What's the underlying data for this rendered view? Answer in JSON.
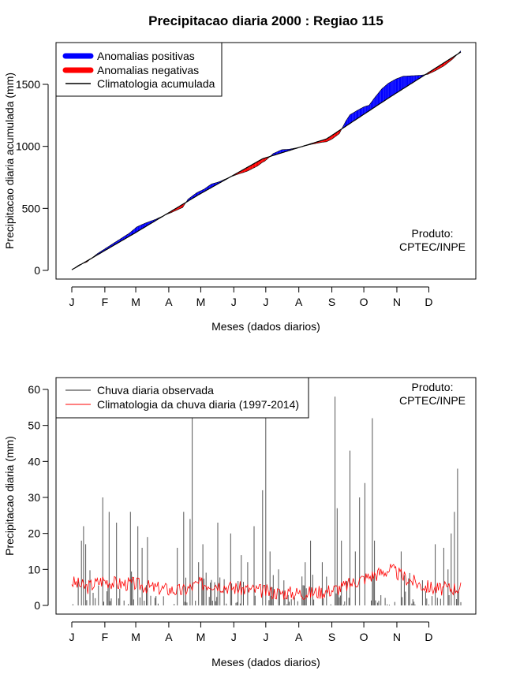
{
  "title": "Precipitacao diaria 2000 : Regiao 115",
  "product_label": [
    "Produto:",
    "CPTEC/INPE"
  ],
  "colors": {
    "positive": "#0000ff",
    "negative": "#ff0000",
    "climatology": "#000000",
    "observed_bar": "#555555",
    "climatology_daily": "#ff0000"
  },
  "chart_data": [
    {
      "type": "area",
      "name": "accumulated",
      "xlabel": "Meses (dados diarios)",
      "ylabel": "Precipitacao diaria acumulada (mm)",
      "xlim": [
        1,
        366
      ],
      "ylim": [
        0,
        1800
      ],
      "yticks": [
        0,
        500,
        1000,
        1500
      ],
      "months": [
        "J",
        "F",
        "M",
        "A",
        "M",
        "J",
        "J",
        "A",
        "S",
        "O",
        "N",
        "D"
      ],
      "month_start_days": [
        1,
        32,
        61,
        92,
        122,
        153,
        183,
        214,
        245,
        275,
        306,
        336
      ],
      "legend": [
        "Anomalias positivas",
        "Anomalias negativas",
        "Climatologia acumulada"
      ],
      "climatology_anchor": {
        "day": [
          1,
          60,
          120,
          180,
          240,
          300,
          366
        ],
        "value": [
          5,
          300,
          610,
          900,
          1060,
          1400,
          1760
        ]
      },
      "anomaly_anchor": {
        "day": [
          1,
          8,
          15,
          25,
          35,
          45,
          55,
          62,
          70,
          80,
          88,
          95,
          105,
          110,
          118,
          125,
          132,
          140,
          150,
          158,
          165,
          175,
          182,
          190,
          198,
          205,
          215,
          225,
          235,
          245,
          252,
          258,
          262,
          270,
          275,
          280,
          285,
          292,
          298,
          305,
          312,
          320,
          328,
          335,
          342,
          350,
          358,
          366
        ],
        "value": [
          0,
          5,
          -8,
          10,
          15,
          20,
          25,
          40,
          30,
          10,
          0,
          -12,
          -25,
          15,
          25,
          20,
          28,
          10,
          0,
          -15,
          -30,
          -35,
          -25,
          15,
          25,
          10,
          0,
          -5,
          -15,
          -30,
          -25,
          40,
          70,
          65,
          60,
          45,
          75,
          110,
          120,
          115,
          100,
          60,
          20,
          -10,
          -20,
          -25,
          -15,
          10
        ]
      }
    },
    {
      "type": "bar",
      "name": "daily",
      "xlabel": "Meses (dados diarios)",
      "ylabel": "Precipitacao diaria (mm)",
      "xlim": [
        1,
        366
      ],
      "ylim": [
        0,
        60
      ],
      "yticks": [
        0,
        10,
        20,
        30,
        40,
        50,
        60
      ],
      "months": [
        "J",
        "F",
        "M",
        "A",
        "M",
        "J",
        "J",
        "A",
        "S",
        "O",
        "N",
        "D"
      ],
      "month_start_days": [
        1,
        32,
        61,
        92,
        122,
        153,
        183,
        214,
        245,
        275,
        306,
        336
      ],
      "legend": [
        "Chuva diaria observada",
        "Climatologia da chuva diaria (1997-2014)"
      ],
      "observed_peaks": {
        "day": [
          10,
          12,
          14,
          30,
          36,
          43,
          56,
          63,
          67,
          72,
          100,
          106,
          112,
          114,
          120,
          124,
          138,
          150,
          160,
          166,
          172,
          180,
          183,
          187,
          195,
          220,
          225,
          236,
          240,
          248,
          250,
          254,
          262,
          267,
          271,
          276,
          283,
          285,
          310,
          318,
          342,
          350,
          354,
          357,
          360,
          363
        ],
        "value": [
          18,
          22,
          17,
          30,
          26,
          23,
          26,
          22,
          16,
          19,
          16,
          26,
          24,
          53,
          12,
          17,
          23,
          20,
          14,
          12,
          22,
          32,
          53,
          15,
          10,
          12,
          18,
          12,
          8,
          58,
          27,
          18,
          43,
          15,
          30,
          34,
          52,
          18,
          15,
          9,
          17,
          16,
          10,
          20,
          26,
          38
        ]
      },
      "climatology_anchor": {
        "day": [
          1,
          15,
          30,
          45,
          60,
          75,
          90,
          105,
          120,
          135,
          150,
          165,
          180,
          195,
          210,
          225,
          240,
          255,
          270,
          285,
          300,
          315,
          330,
          345,
          366
        ],
        "value": [
          6.5,
          5,
          7,
          6,
          6,
          5,
          4.5,
          4,
          6,
          6,
          5,
          4.5,
          4,
          3.5,
          3.5,
          3.5,
          4,
          5,
          7,
          8.5,
          10,
          7.5,
          5.5,
          4.5,
          5
        ]
      }
    }
  ]
}
